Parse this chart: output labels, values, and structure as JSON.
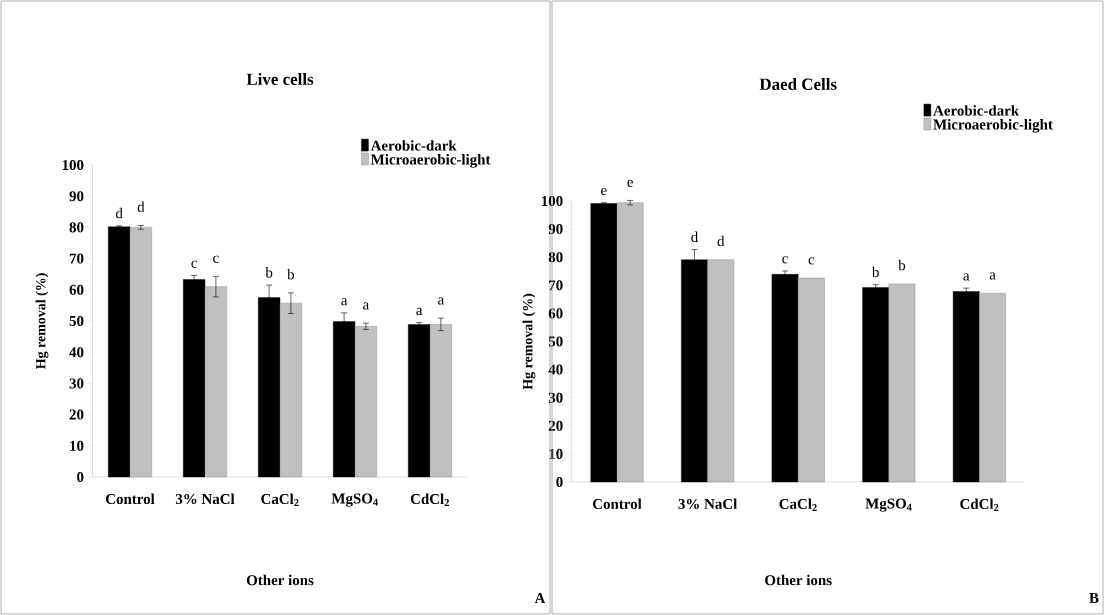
{
  "chart_data": [
    {
      "type": "bar",
      "title": "Live cells",
      "xlabel": "Other ions",
      "ylabel": "Hg removal  (%)",
      "categories": [
        "Control",
        "3% NaCl",
        "CaCl$_{2}$",
        "MgSO$_{4}$",
        "CdCl$_{2}$"
      ],
      "series": [
        {
          "name": "Aerobic-dark",
          "color": "#000000",
          "values": [
            80.2,
            63.3,
            57.5,
            49.8,
            48.9
          ],
          "errors": [
            0.3,
            1.3,
            4.0,
            2.8,
            0.6
          ]
        },
        {
          "name": "Microaerobic-light",
          "color": "#c0c0c0",
          "values": [
            80.0,
            61.0,
            55.7,
            48.3,
            48.9
          ],
          "errors": [
            0.6,
            3.3,
            3.3,
            1.0,
            2.0
          ]
        }
      ],
      "ylim": [
        0,
        100
      ],
      "yticks": [
        0,
        10,
        20,
        30,
        40,
        50,
        60,
        70,
        80,
        90,
        100
      ],
      "legend": "top right",
      "annotations": [
        "d",
        "d",
        "c",
        "c",
        "b",
        "b",
        "a",
        "a",
        "a",
        "a",
        "A"
      ]
    },
    {
      "type": "bar",
      "title": "Daed Cells",
      "xlabel": "Other ions",
      "ylabel": "Hg removal  (%)",
      "categories": [
        "Control",
        "3% NaCl",
        "CaCl$_{2}$",
        "MgSO$_{4}$",
        "CdCl$_{2}$"
      ],
      "series": [
        {
          "name": "Aerobic-dark",
          "color": "#000000",
          "values": [
            99.1,
            79.1,
            73.9,
            69.2,
            67.8
          ],
          "errors": [
            0.3,
            3.6,
            1.2,
            1.0,
            1.2
          ]
        },
        {
          "name": "Microaerobic-light",
          "color": "#c0c0c0",
          "values": [
            99.4,
            79.1,
            72.6,
            70.5,
            67.2
          ],
          "errors": [
            0.8,
            null,
            null,
            null,
            null
          ]
        }
      ],
      "ylim": [
        0,
        100
      ],
      "yticks": [
        0,
        10,
        20,
        30,
        40,
        50,
        60,
        70,
        80,
        90,
        100
      ],
      "legend": "top right",
      "annotations": [
        "e",
        "e",
        "d",
        "d",
        "c",
        "c",
        "b",
        "b",
        "a",
        "a",
        "B"
      ]
    }
  ]
}
